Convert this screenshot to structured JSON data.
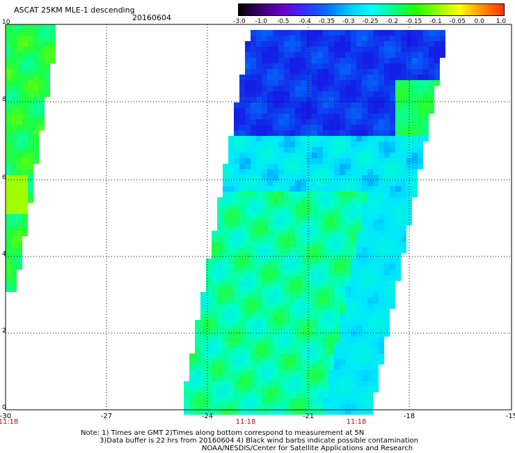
{
  "title": "ASCAT 25KM MLE-1 descending",
  "date": "20160604",
  "colorbar": {
    "ticks": [
      "-3.0",
      "-1.0",
      "-0.5",
      "-0.4",
      "-0.35",
      "-0.3",
      "-0.25",
      "-0.2",
      "-0.15",
      "-0.1",
      "-0.05",
      "0.0",
      "1.0"
    ],
    "colors": [
      "#000000",
      "#3a0070",
      "#6a00c8",
      "#3030ff",
      "#0070ff",
      "#00c8ff",
      "#00ffff",
      "#00ff90",
      "#20ff00",
      "#90ff00",
      "#ffff00",
      "#ff9000",
      "#ff3000"
    ]
  },
  "map": {
    "y_ticks": [
      "10",
      "8",
      "6",
      "4",
      "2",
      "0"
    ],
    "x_ticks": [
      "-30",
      "-27",
      "-24",
      "-21",
      "-18",
      "-15"
    ],
    "pass_times": [
      "11:18",
      "11:18",
      "11:18"
    ]
  },
  "notes": {
    "line1": "Note: 1) Times are GMT 2)Times along bottom correspond to measurement at 5N",
    "line2": "3)Data buffer is 22 hrs from 20160604 4) Black wind barbs indicate possible contamination",
    "line3": "NOAA/NESDIS/Center for Satellite Applications and Research"
  }
}
